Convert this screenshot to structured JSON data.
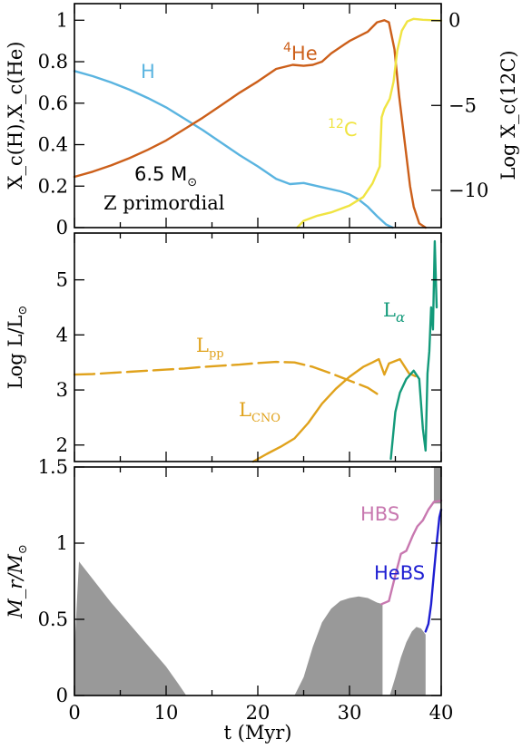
{
  "colors": {
    "hydrogen": "#5ab4e0",
    "helium": "#cc5f1a",
    "carbon": "#f0e442",
    "lpp": "#e0a21c",
    "lalpha": "#139a7a",
    "hbs": "#c878b0",
    "hebs": "#1e1ed2",
    "convective_zone": "#999999"
  },
  "chart_data": [
    {
      "type": "line",
      "panel": "top",
      "ylabel": "X_c(H),X_c(He)",
      "ylabel_right": "Log X_c(12C)",
      "xlim": [
        0,
        40
      ],
      "ylim": [
        0,
        1.08
      ],
      "ylim_right": [
        -12.2,
        1.0
      ],
      "yticks": [
        0,
        0.2,
        0.4,
        0.6,
        0.8,
        1
      ],
      "ytick_labels": [
        "0",
        "0.2",
        "0.4",
        "0.6",
        "0.8",
        "1"
      ],
      "yticks_right": [
        0,
        -5,
        -10
      ],
      "ytick_labels_right": [
        "0",
        "−5",
        "−10"
      ],
      "annotations": {
        "h": "H",
        "he_sup": "4",
        "he": "He",
        "c_sup": "12",
        "c": "C",
        "mass": "6.5 M",
        "sun_symbol": "⊙",
        "metallicity": "Z primordial"
      },
      "series": [
        {
          "name": "H",
          "axis": "left",
          "x": [
            0,
            2,
            4,
            6,
            8,
            10,
            12,
            14,
            16,
            18,
            20,
            22,
            23.5,
            25,
            27,
            29,
            30,
            31,
            32,
            33,
            34,
            34.7
          ],
          "y": [
            0.755,
            0.73,
            0.7,
            0.665,
            0.625,
            0.58,
            0.525,
            0.47,
            0.41,
            0.35,
            0.295,
            0.235,
            0.21,
            0.215,
            0.195,
            0.175,
            0.16,
            0.135,
            0.1,
            0.055,
            0.015,
            0
          ]
        },
        {
          "name": "4He",
          "axis": "left",
          "x": [
            0,
            2,
            4,
            6,
            8,
            10,
            12,
            14,
            16,
            18,
            20,
            22,
            23.8,
            25,
            26,
            27,
            28,
            30,
            32,
            33,
            33.8,
            34.3,
            34.9,
            35.4,
            36,
            36.6,
            37,
            37.6,
            38.3
          ],
          "y": [
            0.245,
            0.27,
            0.3,
            0.335,
            0.375,
            0.42,
            0.475,
            0.53,
            0.59,
            0.65,
            0.705,
            0.765,
            0.785,
            0.78,
            0.785,
            0.8,
            0.84,
            0.9,
            0.945,
            0.99,
            1.0,
            0.99,
            0.86,
            0.64,
            0.42,
            0.2,
            0.1,
            0.02,
            0
          ]
        },
        {
          "name": "12C",
          "axis": "right",
          "x": [
            24.3,
            25,
            26.5,
            28,
            30,
            31.5,
            32.5,
            33.3,
            33.5,
            33.8,
            34.4,
            34.8,
            35.2,
            35.7,
            36.3,
            37,
            38,
            40
          ],
          "y": [
            -12.2,
            -11.8,
            -11.5,
            -11.3,
            -10.9,
            -10.4,
            -9.6,
            -8.6,
            -5.7,
            -5.2,
            -4.6,
            -3.6,
            -1.8,
            -0.6,
            -0.05,
            0.1,
            0.05,
            0.0
          ]
        }
      ]
    },
    {
      "type": "line",
      "panel": "middle",
      "ylabel": "Log L/L",
      "xlim": [
        0,
        40
      ],
      "ylim": [
        1.7,
        5.85
      ],
      "yticks": [
        2,
        3,
        4,
        5
      ],
      "ytick_labels": [
        "2",
        "3",
        "4",
        "5"
      ],
      "annotations": {
        "lpp": "L",
        "lpp_sub": "pp",
        "lcno": "L",
        "lcno_sub": "CNO",
        "la": "L",
        "la_sub": "α"
      },
      "series": [
        {
          "name": "L_pp",
          "dashed": true,
          "x": [
            0,
            2,
            4,
            6,
            8,
            10,
            12,
            14,
            16,
            18,
            20,
            22,
            24,
            26,
            28,
            30,
            32,
            33
          ],
          "y": [
            3.28,
            3.29,
            3.31,
            3.33,
            3.35,
            3.37,
            3.39,
            3.42,
            3.44,
            3.46,
            3.49,
            3.51,
            3.5,
            3.42,
            3.3,
            3.17,
            3.04,
            2.93
          ]
        },
        {
          "name": "L_CNO",
          "x": [
            19.5,
            21,
            22.5,
            24,
            25.5,
            27,
            28.5,
            30,
            31.5,
            32.5,
            33.2,
            33.8,
            34.3,
            35.5,
            36.5,
            37.2
          ],
          "y": [
            1.7,
            1.84,
            1.97,
            2.12,
            2.4,
            2.75,
            3.02,
            3.24,
            3.42,
            3.5,
            3.56,
            3.28,
            3.48,
            3.56,
            3.3,
            3.25
          ]
        },
        {
          "name": "L_alpha",
          "x": [
            34.5,
            35,
            35.5,
            36.2,
            37,
            37.6,
            38,
            38.3,
            38.5,
            38.7,
            38.9,
            39.1,
            39.3,
            39.5
          ],
          "y": [
            1.75,
            2.6,
            2.95,
            3.2,
            3.35,
            3.2,
            2.3,
            1.9,
            3.3,
            3.7,
            4.5,
            4.1,
            5.7,
            4.5
          ]
        }
      ]
    },
    {
      "type": "area",
      "panel": "bottom",
      "ylabel": "M_r/M",
      "xlabel": "t (Myr)",
      "xlim": [
        0,
        40
      ],
      "ylim": [
        0,
        1.5
      ],
      "xticks": [
        0,
        10,
        20,
        30,
        40
      ],
      "xtick_labels": [
        "0",
        "10",
        "20",
        "30",
        "40"
      ],
      "yticks": [
        0,
        0.5,
        1,
        1.5
      ],
      "ytick_labels": [
        "0",
        "0.5",
        "1",
        "1.5"
      ],
      "annotations": {
        "hbs": "HBS",
        "hebs": "HeBS"
      },
      "regions": [
        {
          "name": "convective-core-1",
          "x": [
            0,
            0.5,
            4,
            8,
            10,
            11.3,
            12.2
          ],
          "top": [
            0.3,
            0.88,
            0.61,
            0.33,
            0.19,
            0.08,
            0
          ]
        },
        {
          "name": "convective-core-2",
          "x": [
            24,
            25,
            26,
            27,
            28,
            29,
            30,
            31,
            32,
            33,
            33.6
          ],
          "top": [
            0,
            0.12,
            0.32,
            0.48,
            0.57,
            0.62,
            0.64,
            0.65,
            0.64,
            0.61,
            0.6
          ]
        },
        {
          "name": "convective-core-3",
          "x": [
            34.4,
            35,
            35.6,
            36.2,
            36.8,
            37.3,
            37.8,
            38.3
          ],
          "top": [
            0,
            0.12,
            0.25,
            0.35,
            0.42,
            0.45,
            0.44,
            0.4
          ]
        },
        {
          "name": "convective-envelope",
          "x": [
            39.2,
            40
          ],
          "top": [
            1.5,
            1.5
          ],
          "bottom": [
            1.26,
            1.26
          ]
        }
      ],
      "series": [
        {
          "name": "HBS",
          "x": [
            33.5,
            34.3,
            35,
            35.6,
            36.2,
            36.9,
            37.4,
            38,
            38.6,
            39.2,
            40
          ],
          "y": [
            0.6,
            0.62,
            0.79,
            0.93,
            0.95,
            1.05,
            1.11,
            1.15,
            1.22,
            1.27,
            1.28
          ]
        },
        {
          "name": "HeBS",
          "x": [
            38.3,
            38.6,
            38.9,
            39.2,
            39.5,
            39.8,
            40
          ],
          "y": [
            0.42,
            0.47,
            0.6,
            0.8,
            1.0,
            1.17,
            1.22
          ]
        }
      ]
    }
  ]
}
